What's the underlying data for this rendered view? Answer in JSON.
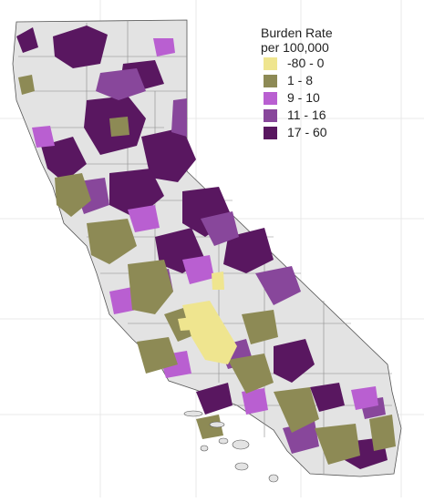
{
  "legend": {
    "title_line1": "Burden Rate",
    "title_line2": "per 100,000",
    "classes": [
      {
        "label": "-80 - 0",
        "color": "#efe58f"
      },
      {
        "label": "1 - 8",
        "color": "#8d8a55"
      },
      {
        "label": "9 - 10",
        "color": "#b95fd1"
      },
      {
        "label": "11 - 16",
        "color": "#88479b"
      },
      {
        "label": "17 - 60",
        "color": "#591760"
      }
    ]
  },
  "map": {
    "region": "California",
    "base_color": "#e3e3e3",
    "border_color": "#555555",
    "grid_color": "#e8e8e8",
    "ocean_color": "#ffffff"
  }
}
